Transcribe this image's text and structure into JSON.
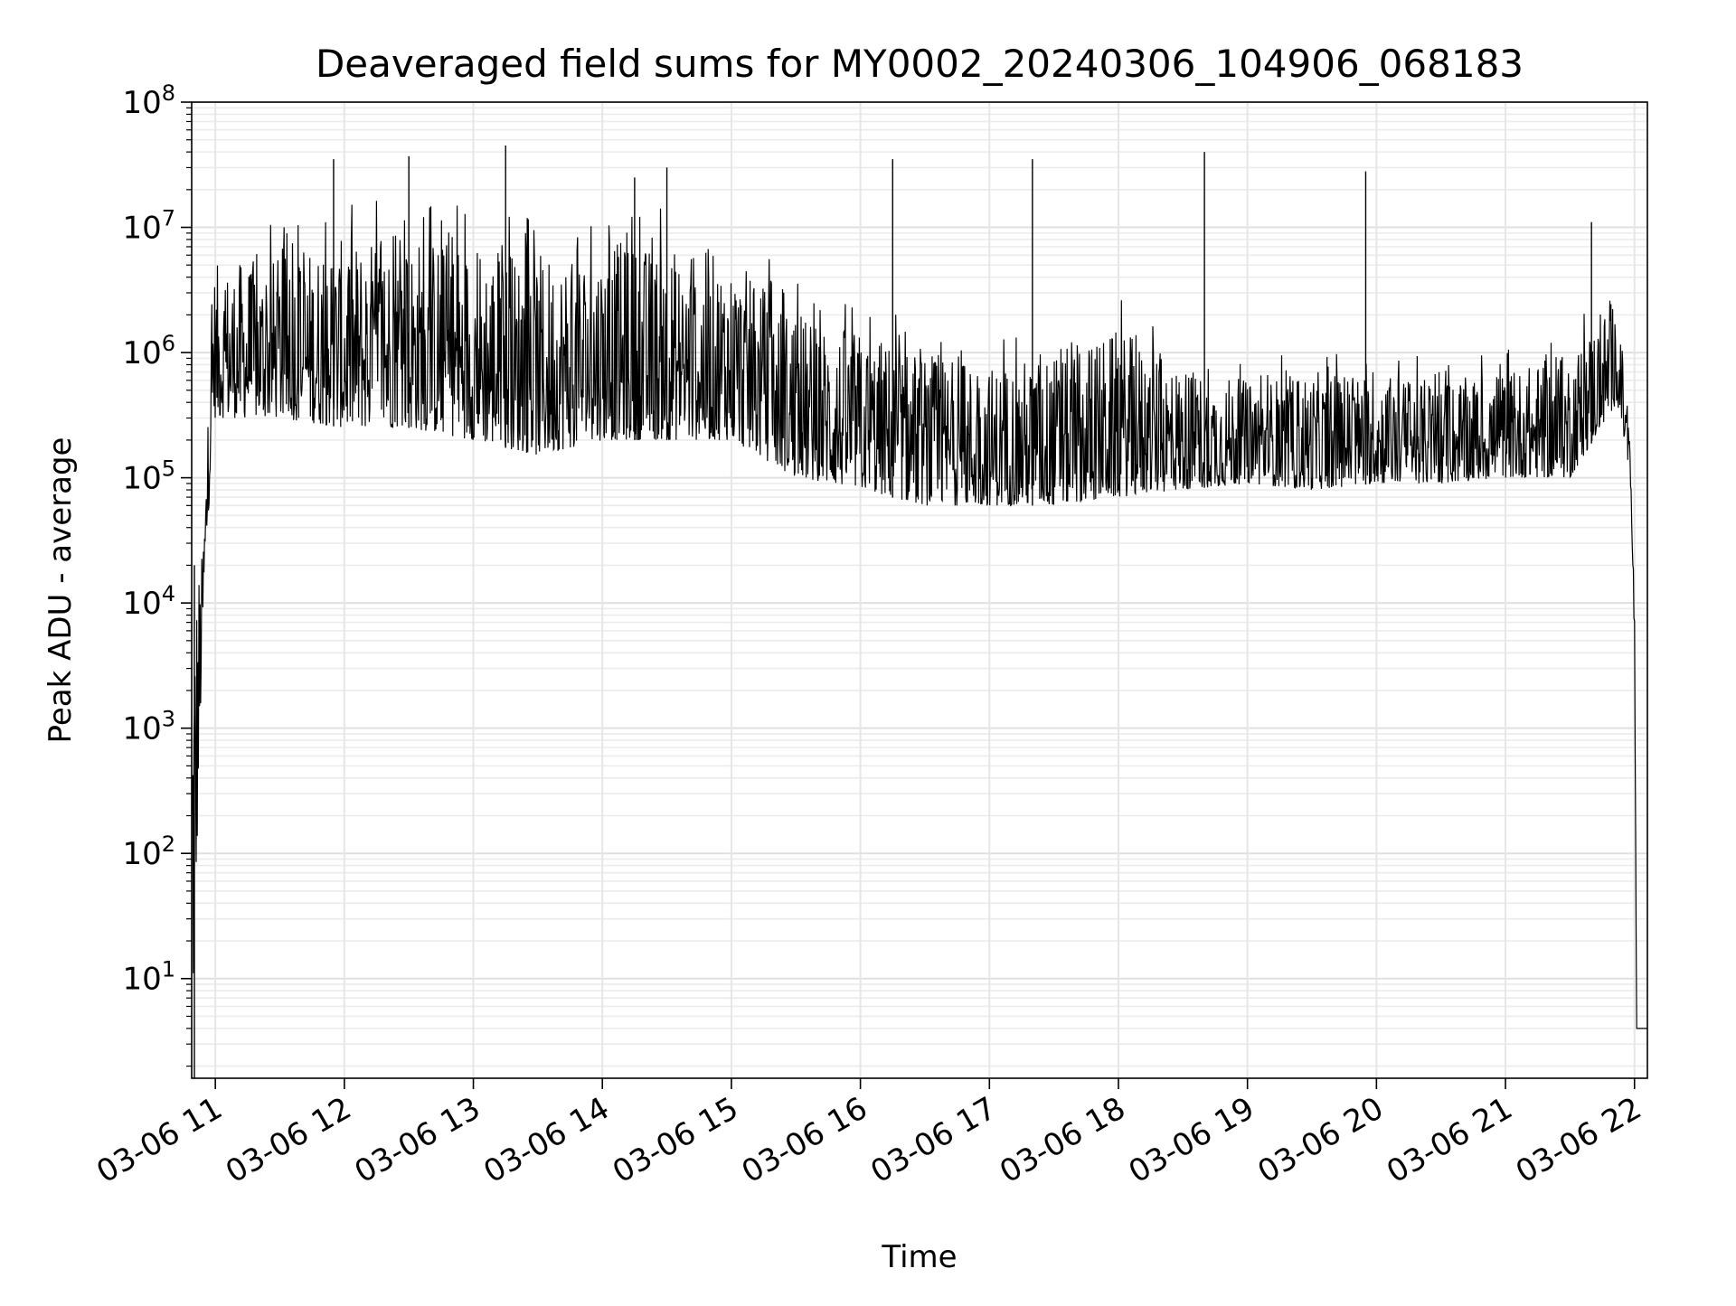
{
  "chart_data": {
    "type": "line",
    "title": "Deaveraged field sums for MY0002_20240306_104906_068183",
    "xlabel": "Time",
    "ylabel": "Peak ADU - average",
    "yscale": "log",
    "ylim": [
      1.6,
      100000000
    ],
    "xlim": [
      "2024-03-06 10:49",
      "2024-03-06 22:06"
    ],
    "grid": "major and minor, light gray",
    "line_color": "#000000",
    "x_ticks": [
      {
        "t": "2024-03-06 11:00",
        "label": "03-06 11"
      },
      {
        "t": "2024-03-06 12:00",
        "label": "03-06 12"
      },
      {
        "t": "2024-03-06 13:00",
        "label": "03-06 13"
      },
      {
        "t": "2024-03-06 14:00",
        "label": "03-06 14"
      },
      {
        "t": "2024-03-06 15:00",
        "label": "03-06 15"
      },
      {
        "t": "2024-03-06 16:00",
        "label": "03-06 16"
      },
      {
        "t": "2024-03-06 17:00",
        "label": "03-06 17"
      },
      {
        "t": "2024-03-06 18:00",
        "label": "03-06 18"
      },
      {
        "t": "2024-03-06 19:00",
        "label": "03-06 19"
      },
      {
        "t": "2024-03-06 20:00",
        "label": "03-06 20"
      },
      {
        "t": "2024-03-06 21:00",
        "label": "03-06 21"
      },
      {
        "t": "2024-03-06 22:00",
        "label": "03-06 22"
      }
    ],
    "y_ticks": [
      {
        "value": 10,
        "base": "10",
        "exp": "1"
      },
      {
        "value": 100,
        "base": "10",
        "exp": "2"
      },
      {
        "value": 1000,
        "base": "10",
        "exp": "3"
      },
      {
        "value": 10000,
        "base": "10",
        "exp": "4"
      },
      {
        "value": 100000,
        "base": "10",
        "exp": "5"
      },
      {
        "value": 1000000,
        "base": "10",
        "exp": "6"
      },
      {
        "value": 10000000,
        "base": "10",
        "exp": "7"
      },
      {
        "value": 100000000,
        "base": "10",
        "exp": "8"
      }
    ],
    "series": [
      {
        "description": "Approximate envelope of the dense trace: [time, typical baseline, typical peak]",
        "points": [
          [
            "2024-03-06 10:49",
            2,
            20000
          ],
          [
            "2024-03-06 10:54",
            5000,
            25000
          ],
          [
            "2024-03-06 10:59",
            300000,
            5000000
          ],
          [
            "2024-03-06 11:30",
            300000,
            6000000
          ],
          [
            "2024-03-06 12:00",
            250000,
            8000000
          ],
          [
            "2024-03-06 12:30",
            250000,
            9000000
          ],
          [
            "2024-03-06 13:00",
            200000,
            8000000
          ],
          [
            "2024-03-06 13:30",
            150000,
            6000000
          ],
          [
            "2024-03-06 14:00",
            200000,
            8000000
          ],
          [
            "2024-03-06 14:30",
            200000,
            7000000
          ],
          [
            "2024-03-06 15:00",
            200000,
            6000000
          ],
          [
            "2024-03-06 15:30",
            100000,
            2000000
          ],
          [
            "2024-03-06 16:00",
            80000,
            1500000
          ],
          [
            "2024-03-06 16:30",
            60000,
            1000000
          ],
          [
            "2024-03-06 17:00",
            60000,
            800000
          ],
          [
            "2024-03-06 17:30",
            60000,
            1000000
          ],
          [
            "2024-03-06 18:00",
            70000,
            1500000
          ],
          [
            "2024-03-06 18:30",
            80000,
            800000
          ],
          [
            "2024-03-06 19:00",
            90000,
            600000
          ],
          [
            "2024-03-06 19:30",
            80000,
            700000
          ],
          [
            "2024-03-06 20:00",
            90000,
            700000
          ],
          [
            "2024-03-06 20:30",
            90000,
            600000
          ],
          [
            "2024-03-06 21:00",
            100000,
            700000
          ],
          [
            "2024-03-06 21:30",
            100000,
            1000000
          ],
          [
            "2024-03-06 21:52",
            400000,
            3000000
          ],
          [
            "2024-03-06 21:58",
            100000,
            200000
          ],
          [
            "2024-03-06 22:00",
            5000,
            10000
          ],
          [
            "2024-03-06 22:01",
            4,
            4
          ],
          [
            "2024-03-06 22:06",
            4,
            4
          ]
        ],
        "notable_spikes": [
          [
            "2024-03-06 11:55",
            35000000
          ],
          [
            "2024-03-06 12:30",
            37000000
          ],
          [
            "2024-03-06 13:15",
            45000000
          ],
          [
            "2024-03-06 14:15",
            25000000
          ],
          [
            "2024-03-06 14:30",
            30000000
          ],
          [
            "2024-03-06 16:15",
            35000000
          ],
          [
            "2024-03-06 17:20",
            35000000
          ],
          [
            "2024-03-06 18:40",
            40000000
          ],
          [
            "2024-03-06 19:55",
            28000000
          ],
          [
            "2024-03-06 21:40",
            11000000
          ]
        ]
      }
    ]
  }
}
